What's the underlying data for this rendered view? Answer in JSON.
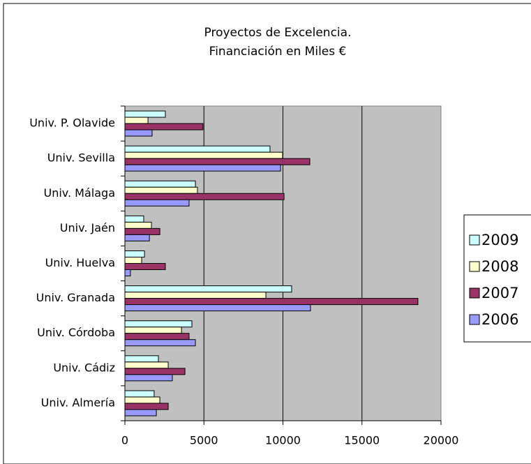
{
  "chart_data": {
    "type": "bar",
    "orientation": "horizontal",
    "title": [
      "Proyectos de Excelencia.",
      "Financiación en Miles €"
    ],
    "categories": [
      "Univ. P. Olavide",
      "Univ. Sevilla",
      "Univ. Málaga",
      "Univ. Jaén",
      "Univ. Huelva",
      "Univ. Granada",
      "Univ. Córdoba",
      "Univ. Cádiz",
      "Univ. Almería"
    ],
    "series": [
      {
        "name": "2009",
        "color": "#ccffff",
        "values": [
          2560,
          9180,
          4460,
          1190,
          1240,
          10550,
          4240,
          2120,
          1850
        ]
      },
      {
        "name": "2008",
        "color": "#ffffcc",
        "values": [
          1460,
          9980,
          4590,
          1680,
          1060,
          8920,
          3580,
          2740,
          2210
        ]
      },
      {
        "name": "2007",
        "color": "#993366",
        "values": [
          4940,
          11700,
          10070,
          2210,
          2560,
          18540,
          4060,
          3800,
          2740
        ]
      },
      {
        "name": "2006",
        "color": "#9999ff",
        "values": [
          1720,
          9850,
          4060,
          1550,
          350,
          11740,
          4460,
          3000,
          1990
        ]
      }
    ],
    "xlim": [
      0,
      20000
    ],
    "xticks": [
      0,
      5000,
      10000,
      15000,
      20000
    ],
    "grid": true,
    "legend": "right"
  }
}
